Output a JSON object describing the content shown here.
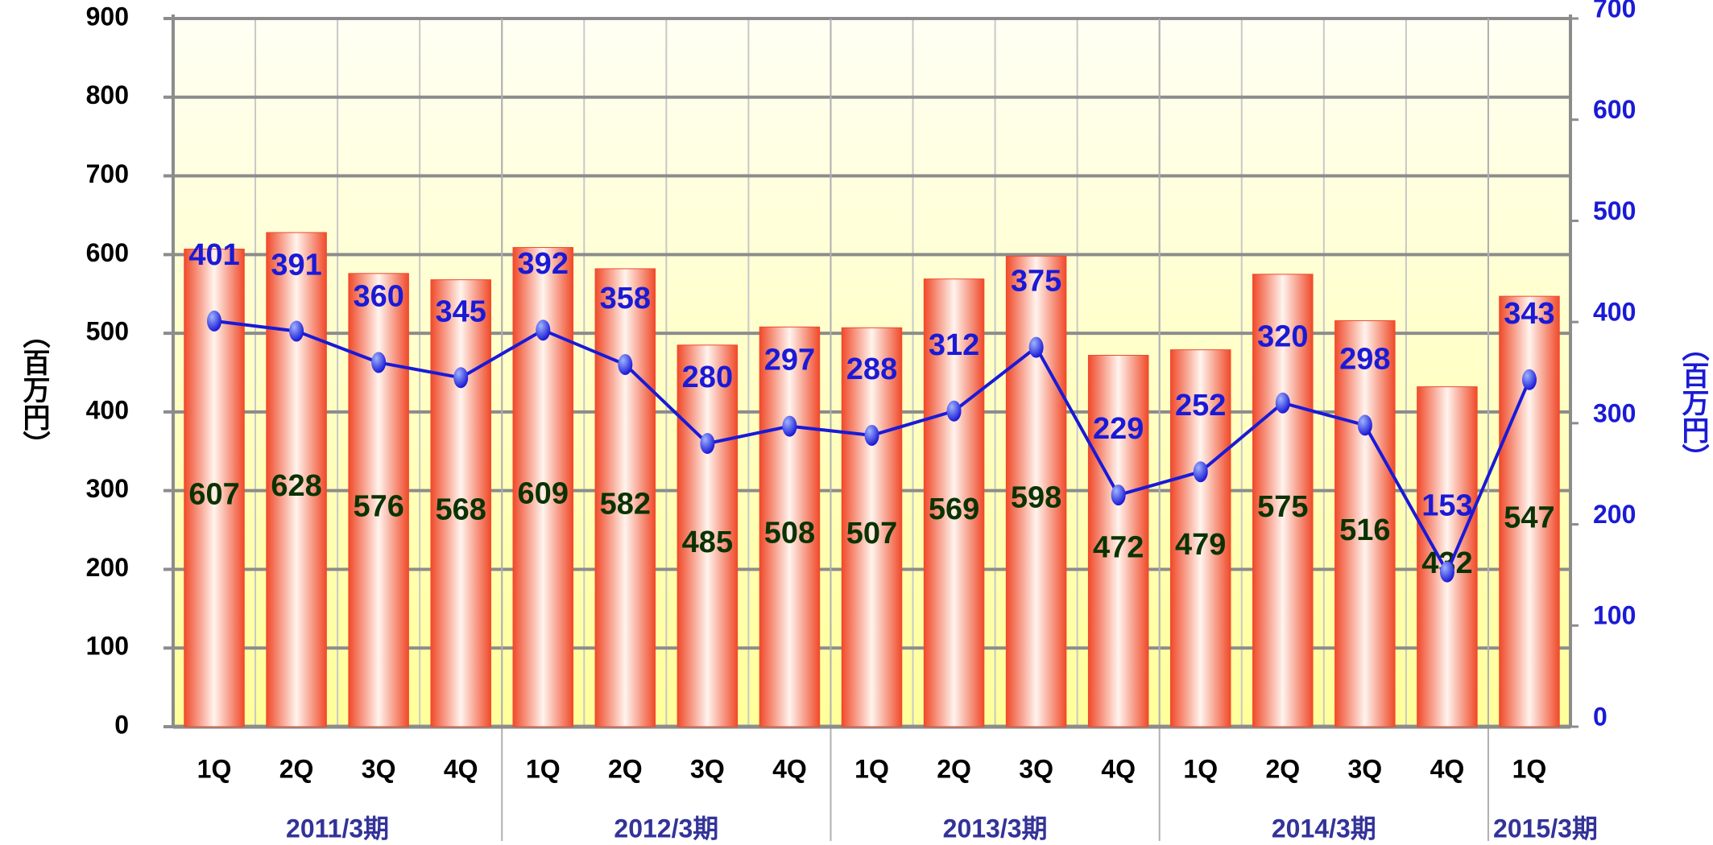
{
  "chart_data": {
    "type": "bar",
    "categories": [
      "1Q",
      "2Q",
      "3Q",
      "4Q",
      "1Q",
      "2Q",
      "3Q",
      "4Q",
      "1Q",
      "2Q",
      "3Q",
      "4Q",
      "1Q",
      "2Q",
      "3Q",
      "4Q",
      "1Q"
    ],
    "x_groups": [
      "2011/3期",
      "2012/3期",
      "2013/3期",
      "2014/3期",
      "2015/3期"
    ],
    "ylabel": "（百万円）",
    "y2label": "（百万円）",
    "ylim": [
      0,
      900
    ],
    "yticks": [
      0,
      100,
      200,
      300,
      400,
      500,
      600,
      700,
      800,
      900
    ],
    "y2lim": [
      0,
      700
    ],
    "y2ticks": [
      0,
      100,
      200,
      300,
      400,
      500,
      600,
      700
    ],
    "grid": true,
    "series": [
      {
        "type": "bar",
        "color": "#f04a2a",
        "label_color": "#0a3300",
        "values": [
          607,
          628,
          576,
          568,
          609,
          582,
          485,
          508,
          507,
          569,
          598,
          472,
          479,
          575,
          516,
          432,
          547
        ]
      },
      {
        "type": "line",
        "axis": "y2",
        "color": "#1a1ad6",
        "values": [
          401,
          391,
          360,
          345,
          392,
          358,
          280,
          297,
          288,
          312,
          375,
          229,
          252,
          320,
          298,
          153,
          343
        ]
      }
    ]
  }
}
